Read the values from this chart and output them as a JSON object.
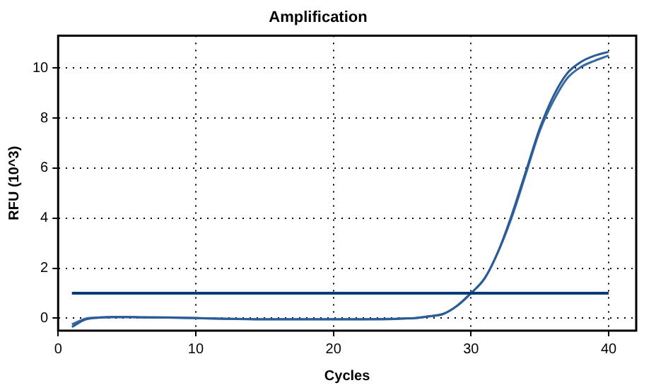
{
  "chart_data": {
    "type": "line",
    "title": "Amplification",
    "xlabel": "Cycles",
    "ylabel": "RFU (10^3)",
    "x": [
      1,
      2,
      3,
      4,
      5,
      6,
      8,
      10,
      12,
      15,
      18,
      20,
      22,
      24,
      25,
      26,
      27,
      28,
      29,
      30,
      31,
      32,
      33,
      34,
      35,
      36,
      37,
      38,
      39,
      40
    ],
    "series": [
      {
        "color": "#2b5c96",
        "values": [
          -0.35,
          -0.05,
          0.02,
          0.04,
          0.04,
          0.03,
          0.02,
          0,
          -0.03,
          -0.05,
          -0.05,
          -0.05,
          -0.05,
          -0.04,
          -0.02,
          0,
          0.07,
          0.17,
          0.5,
          1.0,
          1.6,
          2.7,
          4.2,
          5.9,
          7.6,
          8.9,
          9.8,
          10.25,
          10.5,
          10.65
        ]
      },
      {
        "color": "#3a6aa3",
        "values": [
          -0.25,
          -0.02,
          0.03,
          0.05,
          0.05,
          0.04,
          0.03,
          0.01,
          -0.02,
          -0.04,
          -0.04,
          -0.04,
          -0.04,
          -0.03,
          -0.01,
          0.01,
          0.08,
          0.18,
          0.5,
          1.0,
          1.6,
          2.7,
          4.1,
          5.8,
          7.5,
          8.7,
          9.6,
          10.05,
          10.3,
          10.5
        ]
      }
    ],
    "ref_lines": [
      {
        "axis": "y",
        "value": 1,
        "color": "#003a78"
      }
    ],
    "xlim": [
      0,
      42
    ],
    "xticks": [
      0,
      10,
      20,
      30,
      40
    ],
    "ylim": [
      -0.5,
      11.3
    ],
    "yticks": [
      0,
      2,
      4,
      6,
      8,
      10
    ],
    "grid": true,
    "legend": false,
    "marker": "none",
    "line_style": "solid"
  }
}
